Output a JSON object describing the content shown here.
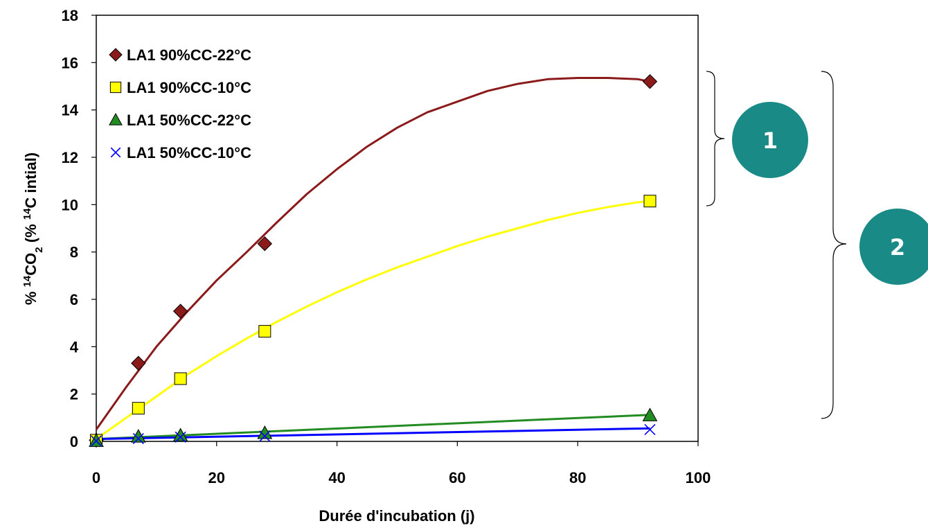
{
  "chart_data": {
    "type": "scatter",
    "xlabel": "Durée d'incubation (j)",
    "ylabel": {
      "prefix": "% ",
      "sup1": "14",
      "mid1": "CO",
      "sub": "2",
      "mid2": " (% ",
      "sup2": "14",
      "suffix": "C intial)"
    },
    "xlim": [
      0,
      100
    ],
    "ylim": [
      0,
      18
    ],
    "x_ticks": [
      0,
      20,
      40,
      60,
      80,
      100
    ],
    "y_ticks": [
      0,
      2,
      4,
      6,
      8,
      10,
      12,
      14,
      16,
      18
    ],
    "grid": false,
    "legend_position": "top-left",
    "series": [
      {
        "name": "LA1 90%CC-22°C",
        "marker": "diamond",
        "color": "#8b1a1a",
        "line_color": "#8b1a1a",
        "x": [
          0,
          7,
          14,
          28,
          92
        ],
        "y": [
          0.05,
          3.3,
          5.5,
          8.35,
          15.2
        ],
        "trend_x": [
          0,
          5,
          10,
          15,
          20,
          25,
          30,
          35,
          40,
          45,
          50,
          55,
          60,
          65,
          70,
          75,
          80,
          85,
          90,
          92
        ],
        "trend_y": [
          0.5,
          2.3,
          4.0,
          5.45,
          6.8,
          8.0,
          9.25,
          10.45,
          11.5,
          12.45,
          13.25,
          13.9,
          14.35,
          14.8,
          15.1,
          15.3,
          15.35,
          15.35,
          15.3,
          15.2
        ]
      },
      {
        "name": "LA1 90%CC-10°C",
        "marker": "square",
        "color": "#ffff00",
        "line_color": "#ffff00",
        "x": [
          0,
          7,
          14,
          28,
          92
        ],
        "y": [
          0.05,
          1.4,
          2.65,
          4.65,
          10.15
        ],
        "trend_x": [
          0,
          5,
          10,
          15,
          20,
          25,
          30,
          35,
          40,
          45,
          50,
          55,
          60,
          65,
          70,
          75,
          80,
          85,
          90,
          92
        ],
        "trend_y": [
          0.1,
          1.0,
          1.9,
          2.8,
          3.6,
          4.35,
          5.05,
          5.7,
          6.3,
          6.85,
          7.35,
          7.8,
          8.25,
          8.65,
          9.0,
          9.35,
          9.65,
          9.9,
          10.1,
          10.15
        ]
      },
      {
        "name": "LA1 50%CC-22°C",
        "marker": "triangle",
        "color": "#228b22",
        "line_color": "#228b22",
        "x": [
          0,
          7,
          14,
          28,
          92
        ],
        "y": [
          0.02,
          0.2,
          0.25,
          0.35,
          1.1
        ],
        "trend_x": [
          0,
          92
        ],
        "trend_y": [
          0.1,
          1.12
        ]
      },
      {
        "name": "LA1 50%CC-10°C",
        "marker": "x",
        "color": "#0000ff",
        "line_color": "#0000ff",
        "x": [
          0,
          7,
          14,
          28,
          92
        ],
        "y": [
          0.02,
          0.12,
          0.18,
          0.22,
          0.5
        ],
        "trend_x": [
          0,
          92
        ],
        "trend_y": [
          0.1,
          0.55
        ]
      }
    ],
    "annotations": [
      {
        "label": "1",
        "color": "#1a8a87"
      },
      {
        "label": "2",
        "color": "#1a8a87"
      }
    ]
  }
}
